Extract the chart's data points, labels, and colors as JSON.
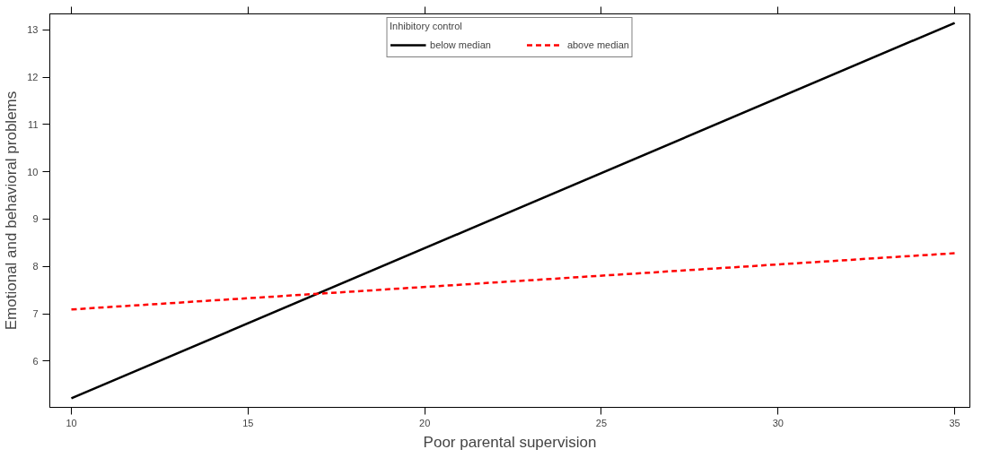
{
  "chart_data": {
    "type": "line",
    "xlabel": "Poor parental supervision",
    "ylabel": "Emotional and behavioral problems",
    "legend_title": "Inhibitory control",
    "legend": "top",
    "x": [
      10,
      35
    ],
    "xlim": [
      9.39,
      35.43
    ],
    "ylim": [
      5.02,
      13.34
    ],
    "xticks": [
      10,
      15,
      20,
      25,
      30,
      35
    ],
    "yticks": [
      6,
      7,
      8,
      9,
      10,
      11,
      12,
      13
    ],
    "grid": false,
    "series": [
      {
        "name": "below median",
        "color": "#000000",
        "values": [
          5.21,
          13.15
        ],
        "line_style": "solid"
      },
      {
        "name": "above median",
        "color": "#ff0000",
        "values": [
          7.09,
          8.28
        ],
        "line_style": "dashed"
      }
    ]
  }
}
